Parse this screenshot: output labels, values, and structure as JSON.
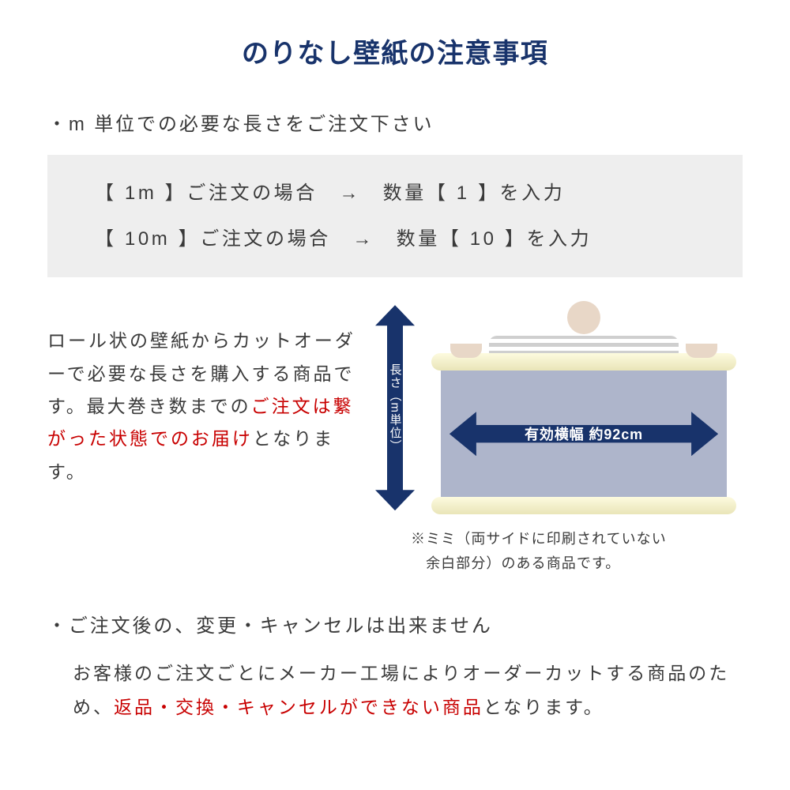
{
  "colors": {
    "title": "#18336b",
    "body": "#3a3a3a",
    "red": "#c80000",
    "box_bg": "#eeeeee",
    "arrow_bg": "#18336b",
    "arrow_text": "#ffffff",
    "sheet": "#aeb5cb"
  },
  "title": "のりなし壁紙の注意事項",
  "bullet1": "・m 単位での必要な長さをご注文下さい",
  "examples": {
    "row1": "【 1m 】ご注文の場合　→　数量【 1 】を入力",
    "row2": "【 10m 】ご注文の場合　→　数量【 10 】を入力"
  },
  "desc": {
    "p1": "ロール状の壁紙からカットオーダーで必要な長さを購入する商品です。最大巻き数までの",
    "p1_red": "ご注文は繋がった状態でのお届け",
    "p1_tail": "となります。"
  },
  "diagram": {
    "vert_label": "長さ（m単位）",
    "width_label": "有効横幅 約92cm",
    "note_line1": "※ミミ（両サイドに印刷されていない",
    "note_line2": "　余白部分）のある商品です。"
  },
  "section2": {
    "title": "・ご注文後の、変更・キャンセルは出来ません",
    "body_pre": "お客様のご注文ごとにメーカー工場によりオーダーカットする商品のため、",
    "body_red": "返品・交換・キャンセルができない商品",
    "body_tail": "となります。"
  }
}
